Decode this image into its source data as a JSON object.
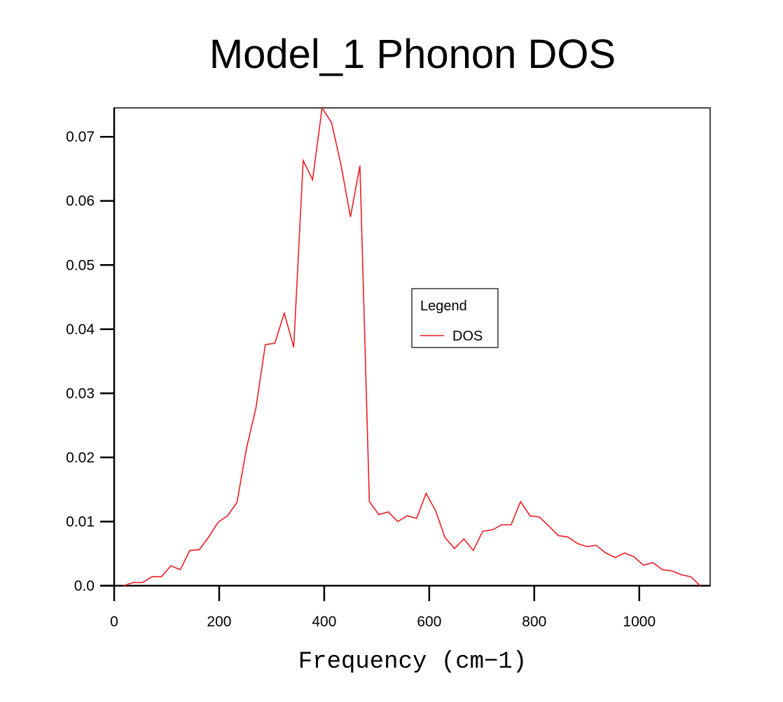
{
  "chart_data": {
    "type": "line",
    "title": "Model_1 Phonon DOS",
    "xlabel": "Frequency (cm−1)",
    "ylabel": "",
    "xlim": [
      0,
      1135
    ],
    "ylim": [
      0,
      0.0745
    ],
    "xticks": [
      0,
      200,
      400,
      600,
      800,
      1000
    ],
    "xtick_labels": [
      "0",
      "200",
      "400",
      "600",
      "800",
      "1000"
    ],
    "yticks": [
      0,
      0.01,
      0.02,
      0.03,
      0.04,
      0.05,
      0.06,
      0.07
    ],
    "ytick_labels": [
      "0.0",
      "0.01",
      "0.02",
      "0.03",
      "0.04",
      "0.05",
      "0.06",
      "0.07"
    ],
    "grid": false,
    "legend": {
      "title": "Legend",
      "placement": "center-right",
      "entries": [
        "DOS"
      ]
    },
    "series": [
      {
        "name": "DOS",
        "color": "#ee1c25",
        "x": [
          18,
          36,
          54,
          72,
          90,
          108,
          126,
          144,
          162,
          180,
          198,
          216,
          234,
          252,
          270,
          288,
          306,
          324,
          342,
          360,
          378,
          396,
          414,
          432,
          450,
          468,
          486,
          504,
          522,
          540,
          558,
          576,
          594,
          612,
          630,
          648,
          666,
          684,
          702,
          720,
          738,
          756,
          774,
          792,
          810,
          828,
          846,
          864,
          882,
          900,
          918,
          936,
          954,
          972,
          990,
          1008,
          1026,
          1044,
          1062,
          1080,
          1098,
          1116
        ],
        "y": [
          0.0,
          0.0005,
          0.0005,
          0.0014,
          0.0014,
          0.0031,
          0.0025,
          0.0055,
          0.0056,
          0.0076,
          0.0099,
          0.0109,
          0.013,
          0.0214,
          0.0277,
          0.0376,
          0.0378,
          0.0425,
          0.0372,
          0.0663,
          0.0633,
          0.0745,
          0.0722,
          0.0656,
          0.0575,
          0.0655,
          0.0131,
          0.0111,
          0.0115,
          0.01,
          0.0109,
          0.0105,
          0.0144,
          0.0117,
          0.0075,
          0.0058,
          0.0073,
          0.0055,
          0.0085,
          0.0087,
          0.0095,
          0.0095,
          0.0131,
          0.0109,
          0.0107,
          0.0093,
          0.0078,
          0.0076,
          0.0066,
          0.0061,
          0.0063,
          0.0051,
          0.0044,
          0.0051,
          0.0045,
          0.0032,
          0.0036,
          0.0025,
          0.0023,
          0.0017,
          0.0014,
          0.0
        ]
      }
    ]
  }
}
